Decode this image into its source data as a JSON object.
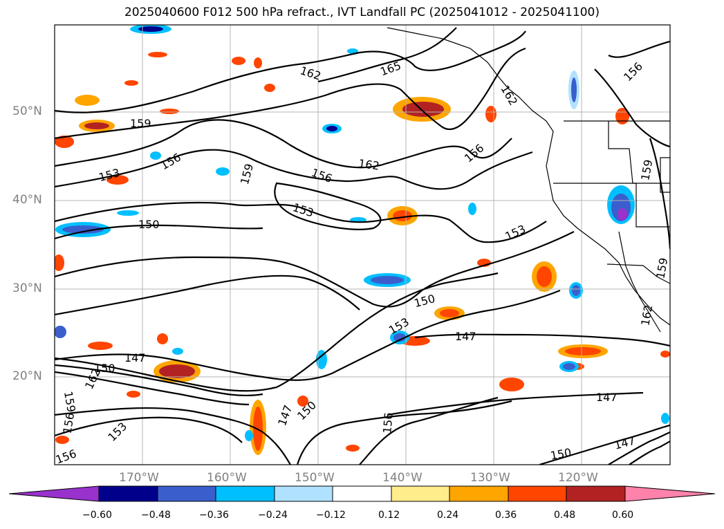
{
  "title": "2025040600 F012 500 hPa refract., IVT Landfall PC (2025041012 - 2025041100)",
  "lat_labels": [
    "50°N",
    "40°N",
    "30°N",
    "20°N"
  ],
  "lon_labels": [
    "170°W",
    "160°W",
    "150°W",
    "140°W",
    "130°W",
    "120°W"
  ],
  "colorbar": {
    "colors": [
      "#9932cc",
      "#00008b",
      "#3a5fcd",
      "#00bfff",
      "#b0e2ff",
      "#ffffff",
      "#ffec8b",
      "#ffa500",
      "#ff4500",
      "#b22222",
      "#ff82ab"
    ],
    "ticks": [
      "−0.60",
      "−0.48",
      "−0.36",
      "−0.24",
      "−0.12",
      "0.12",
      "0.24",
      "0.36",
      "0.48",
      "0.60"
    ]
  },
  "contour_labels": [
    "162",
    "165",
    "159",
    "156",
    "153",
    "150",
    "147",
    "159",
    "156",
    "153",
    "162",
    "156",
    "153",
    "150",
    "147",
    "162",
    "159",
    "156",
    "162",
    "147",
    "153",
    "150",
    "147",
    "153",
    "150",
    "156",
    "159",
    "162",
    "156",
    "159",
    "156",
    "150",
    "147"
  ]
}
